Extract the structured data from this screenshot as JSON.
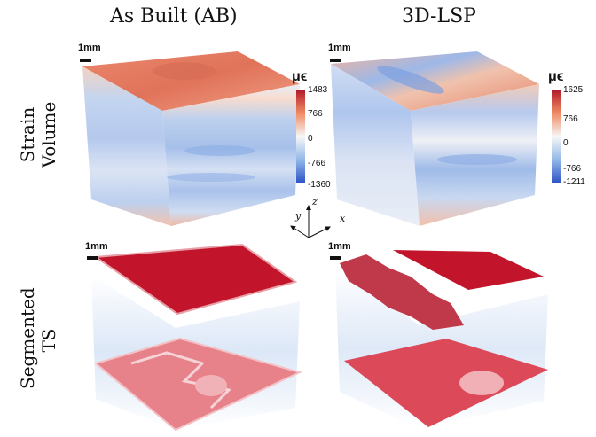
{
  "columns": [
    "As Built (AB)",
    "3D-LSP"
  ],
  "rows": [
    {
      "line1": "Strain",
      "line2": "Volume"
    },
    {
      "line1": "Segmented",
      "line2": "TS"
    }
  ],
  "scale_bar": "1mm",
  "colorbar_unit": "μϵ",
  "colorbars": [
    {
      "ticks": [
        "1483",
        "766",
        "0",
        "-766",
        "-1360"
      ]
    },
    {
      "ticks": [
        "1625",
        "766",
        "0",
        "-766",
        "-1211"
      ]
    }
  ],
  "axes": {
    "x": "x",
    "y": "y",
    "z": "z"
  }
}
